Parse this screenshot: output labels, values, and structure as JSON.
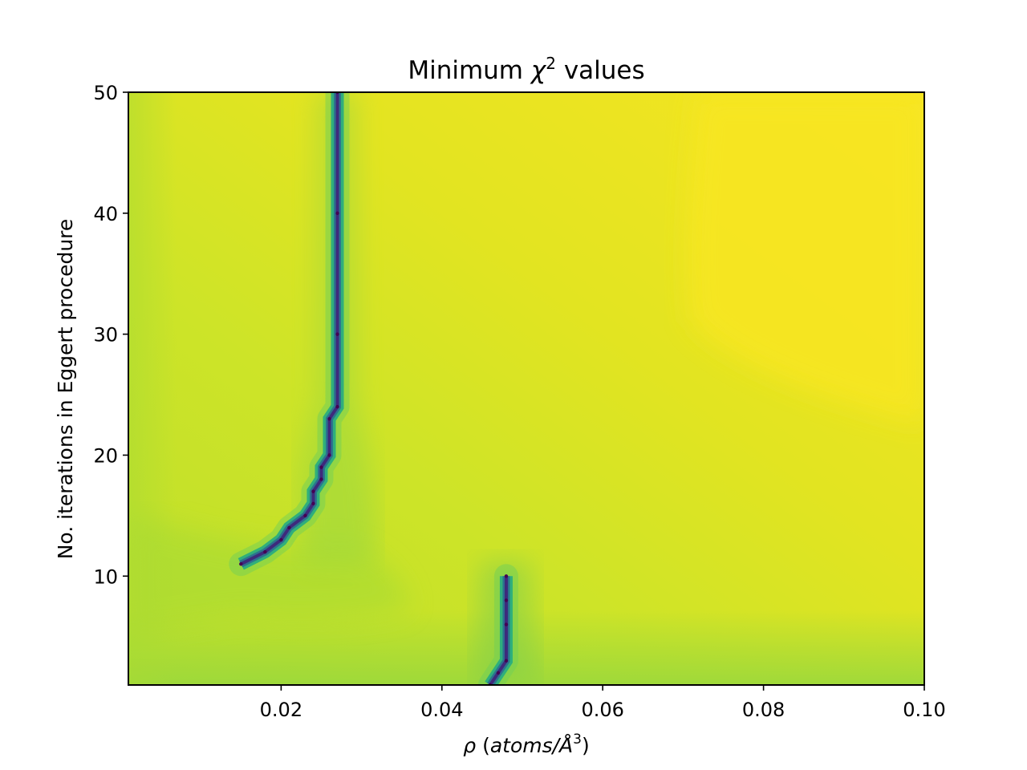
{
  "chart_data": {
    "type": "heatmap",
    "title": {
      "main": "Minimum ",
      "symbol": "χ",
      "superscript": "2",
      "rest": " values"
    },
    "xlabel": {
      "symbol": "ρ",
      "open": " (",
      "units": "atoms/Å",
      "superscript": "3",
      "close": ")"
    },
    "ylabel": "No. iterations in Eggert procedure",
    "xlim": [
      0.001,
      0.1
    ],
    "ylim": [
      1,
      50
    ],
    "x_ticks": [
      0.02,
      0.04,
      0.06,
      0.08,
      0.1
    ],
    "x_tick_labels": [
      "0.02",
      "0.04",
      "0.06",
      "0.08",
      "0.10"
    ],
    "y_ticks": [
      10,
      20,
      30,
      40,
      50
    ],
    "y_tick_labels": [
      "10",
      "20",
      "30",
      "40",
      "50"
    ],
    "colormap": "viridis",
    "colors": {
      "background_low": "#bfdf2a",
      "background_high": "#f5e422",
      "minimum_line": "#3e2a7c"
    },
    "minimum_valleys": [
      {
        "points": [
          [
            0.027,
            50
          ],
          [
            0.027,
            40
          ],
          [
            0.027,
            30
          ],
          [
            0.027,
            24
          ],
          [
            0.026,
            23
          ],
          [
            0.026,
            20
          ],
          [
            0.025,
            19
          ],
          [
            0.025,
            18
          ],
          [
            0.024,
            17
          ],
          [
            0.024,
            16
          ],
          [
            0.023,
            15
          ],
          [
            0.021,
            14
          ],
          [
            0.02,
            13
          ],
          [
            0.018,
            12
          ],
          [
            0.015,
            11
          ]
        ]
      },
      {
        "points": [
          [
            0.048,
            10
          ],
          [
            0.048,
            8
          ],
          [
            0.048,
            6
          ],
          [
            0.048,
            3
          ],
          [
            0.047,
            2
          ],
          [
            0.046,
            1
          ]
        ]
      }
    ]
  }
}
